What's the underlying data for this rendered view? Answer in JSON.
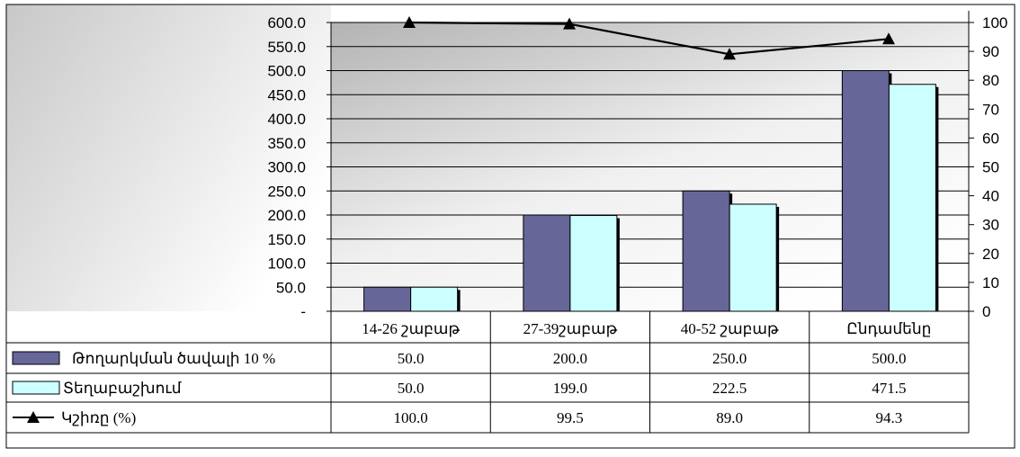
{
  "chart_data": {
    "type": "bar",
    "categories": [
      "14-26 շաբաթ",
      "27-39շաբաթ",
      "40-52 շաբաթ",
      "Ընդամենը"
    ],
    "series": [
      {
        "name": "Թողարկման ծավալի 10 %",
        "kind": "bar",
        "axis": "left",
        "color": "#666699",
        "values": [
          50.0,
          200.0,
          250.0,
          500.0
        ],
        "table_values": [
          "50.0",
          "200.0",
          "250.0",
          "500.0"
        ]
      },
      {
        "name": "Տեղաբաշխում",
        "kind": "bar",
        "axis": "left",
        "color": "#ccffff",
        "values": [
          50.0,
          199.0,
          222.5,
          471.5
        ],
        "table_values": [
          "50.0",
          "199.0",
          "222.5",
          "471.5"
        ]
      },
      {
        "name": "Կշիռը (%)",
        "kind": "line",
        "axis": "right",
        "color": "#000000",
        "marker": "triangle",
        "values": [
          100.0,
          99.5,
          89.0,
          94.3
        ],
        "table_values": [
          "100.0",
          "99.5",
          "89.0",
          "94.3"
        ]
      }
    ],
    "y_left": {
      "range": [
        0,
        600
      ],
      "ticks": [
        "-",
        "50.0",
        "100.0",
        "150.0",
        "200.0",
        "250.0",
        "300.0",
        "350.0",
        "400.0",
        "450.0",
        "500.0",
        "550.0",
        "600.0"
      ]
    },
    "y_right": {
      "range": [
        0,
        100
      ],
      "ticks": [
        "0",
        "10",
        "20",
        "30",
        "40",
        "50",
        "60",
        "70",
        "80",
        "90",
        "100"
      ]
    },
    "grid": true,
    "legend": "data-table"
  }
}
